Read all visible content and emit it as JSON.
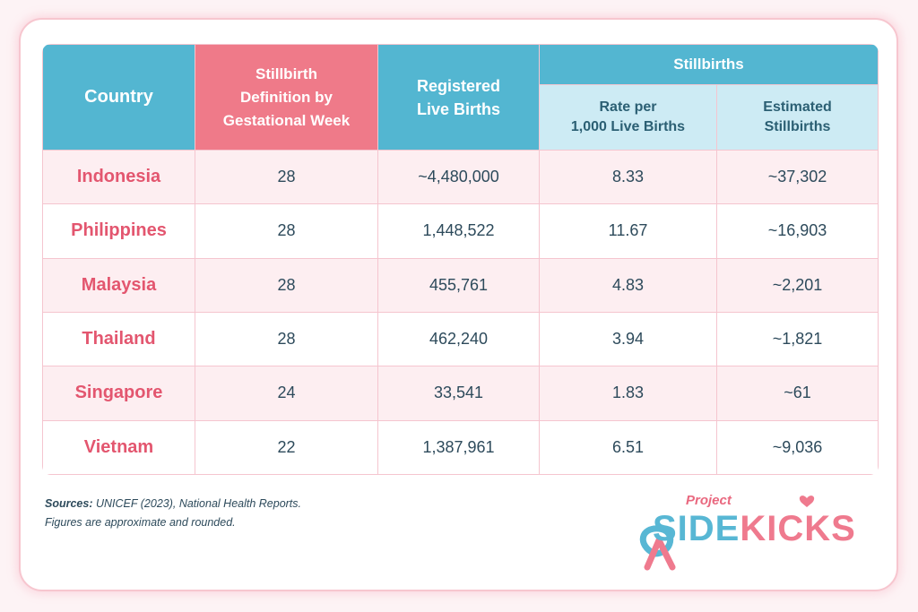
{
  "table": {
    "headers": {
      "country": "Country",
      "definition": [
        "Stillbirth",
        "Definition by",
        "Gestational Week"
      ],
      "live_births": [
        "Registered",
        "Live Births"
      ],
      "stillbirths_group": "Stillbirths",
      "rate": [
        "Rate per",
        "1,000 Live Births"
      ],
      "estimated": [
        "Estimated",
        "Stillbirths"
      ]
    },
    "rows": [
      {
        "country": "Indonesia",
        "week": "28",
        "live_births": "~4,480,000",
        "rate": "8.33",
        "estimated": "~37,302"
      },
      {
        "country": "Philippines",
        "week": "28",
        "live_births": "1,448,522",
        "rate": "11.67",
        "estimated": "~16,903"
      },
      {
        "country": "Malaysia",
        "week": "28",
        "live_births": "455,761",
        "rate": "4.83",
        "estimated": "~2,201"
      },
      {
        "country": "Thailand",
        "week": "28",
        "live_births": "462,240",
        "rate": "3.94",
        "estimated": "~1,821"
      },
      {
        "country": "Singapore",
        "week": "24",
        "live_births": "33,541",
        "rate": "1.83",
        "estimated": "~61"
      },
      {
        "country": "Vietnam",
        "week": "22",
        "live_births": "1,387,961",
        "rate": "6.51",
        "estimated": "~9,036"
      }
    ]
  },
  "footer": {
    "sources_label": "Sources:",
    "sources_text": " UNICEF (2023), National Health Reports.",
    "note": "Figures are approximate and rounded."
  },
  "logo": {
    "project": "Project",
    "side": "SIDE",
    "kicks": "KICKS"
  },
  "colors": {
    "header_blue": "#53b6d1",
    "header_pink": "#ef7a89",
    "country_pink": "#e3566f",
    "row_tint": "#fdeef1"
  }
}
